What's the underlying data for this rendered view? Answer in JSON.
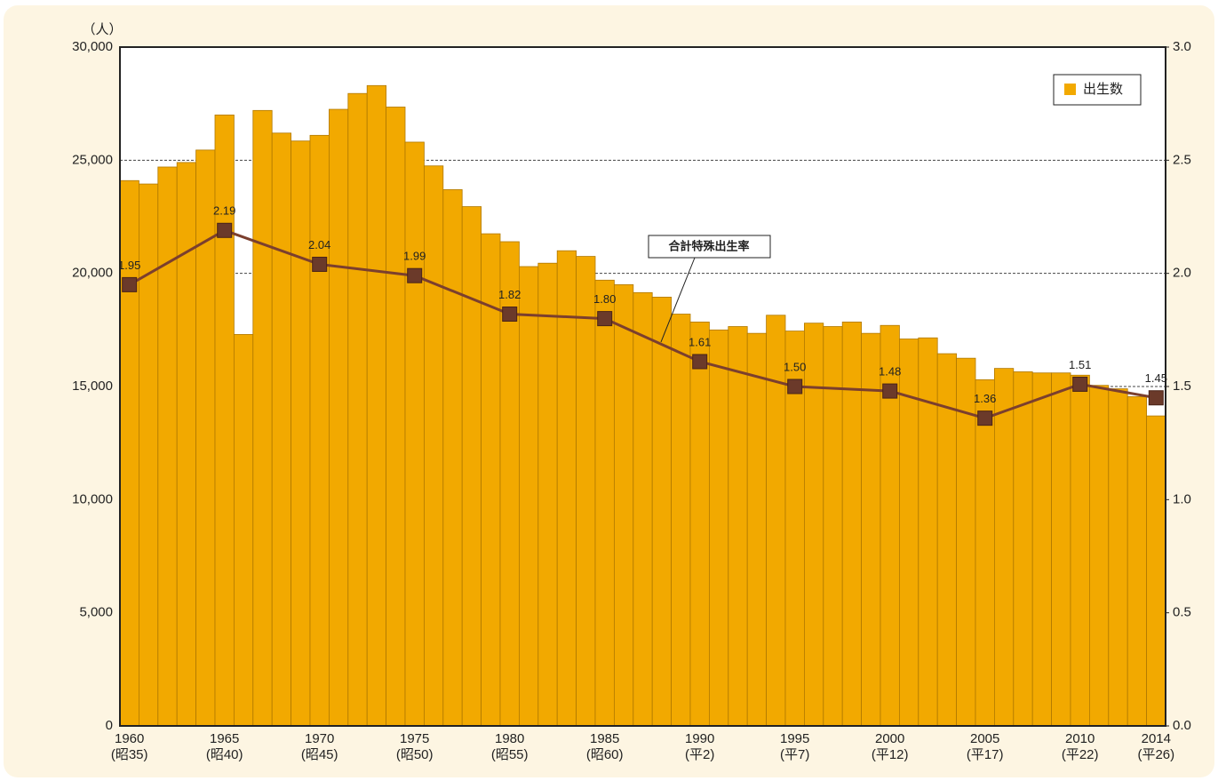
{
  "chart_data": {
    "type": "bar-line",
    "y_unit_label": "（人）",
    "categories": [
      "1960",
      null,
      null,
      null,
      null,
      "1965",
      null,
      null,
      null,
      null,
      "1970",
      null,
      null,
      null,
      null,
      "1975",
      null,
      null,
      null,
      null,
      "1980",
      null,
      null,
      null,
      null,
      "1985",
      null,
      null,
      null,
      null,
      "1990",
      null,
      null,
      null,
      null,
      "1995",
      null,
      null,
      null,
      null,
      "2000",
      null,
      null,
      null,
      null,
      "2005",
      null,
      null,
      null,
      null,
      "2010",
      null,
      null,
      null,
      "2014"
    ],
    "category_eras": [
      "(昭35)",
      null,
      null,
      null,
      null,
      "(昭40)",
      null,
      null,
      null,
      null,
      "(昭45)",
      null,
      null,
      null,
      null,
      "(昭50)",
      null,
      null,
      null,
      null,
      "(昭55)",
      null,
      null,
      null,
      null,
      "(昭60)",
      null,
      null,
      null,
      null,
      "(平2)",
      null,
      null,
      null,
      null,
      "(平7)",
      null,
      null,
      null,
      null,
      "(平12)",
      null,
      null,
      null,
      null,
      "(平17)",
      null,
      null,
      null,
      null,
      "(平22)",
      null,
      null,
      null,
      "(平26)"
    ],
    "xlim": [
      1960,
      2014
    ],
    "series": [
      {
        "name": "出生数",
        "type": "bar",
        "color": "#f2a900",
        "values": [
          24100,
          23950,
          24700,
          24900,
          25450,
          27000,
          17300,
          27200,
          26200,
          25850,
          26100,
          27250,
          27950,
          28300,
          27350,
          25800,
          24750,
          23700,
          22950,
          21750,
          21400,
          20300,
          20450,
          21000,
          20750,
          19700,
          19500,
          19150,
          18950,
          18200,
          17850,
          17500,
          17650,
          17350,
          18150,
          17450,
          17800,
          17650,
          17850,
          17350,
          17700,
          17100,
          17150,
          16450,
          16250,
          15300,
          15800,
          15650,
          15600,
          15600,
          15500,
          15050,
          14900,
          14550,
          13700
        ]
      },
      {
        "name": "合計特殊出生率",
        "type": "line",
        "axis": "y2",
        "color": "#7b3f2e",
        "x": [
          1960,
          1965,
          1970,
          1975,
          1980,
          1985,
          1990,
          1995,
          2000,
          2005,
          2010,
          2014
        ],
        "values": [
          1.95,
          2.19,
          2.04,
          1.99,
          1.82,
          1.8,
          1.61,
          1.5,
          1.48,
          1.36,
          1.51,
          1.45
        ],
        "value_labels": [
          "1.95",
          "2.19",
          "2.04",
          "1.99",
          "1.82",
          "1.80",
          "1.61",
          "1.50",
          "1.48",
          "1.36",
          "1.51",
          "1.45"
        ]
      }
    ],
    "ylim": [
      0,
      30000
    ],
    "yticks": [
      0,
      {
        "value": 5000,
        "label": "5,000"
      },
      {
        "value": 10000,
        "label": "10,000"
      },
      {
        "value": 15000,
        "label": "15,000"
      },
      {
        "value": 20000,
        "label": "20,000"
      },
      {
        "value": 25000,
        "label": "25,000"
      },
      {
        "value": 30000,
        "label": "30,000"
      }
    ],
    "y2lim": [
      0,
      3
    ],
    "y2ticks": [
      {
        "value": 0,
        "label": "0.0"
      },
      {
        "value": 0.5,
        "label": "0.5"
      },
      {
        "value": 1,
        "label": "1.0"
      },
      {
        "value": 1.5,
        "label": "1.5"
      },
      {
        "value": 2,
        "label": "2.0"
      },
      {
        "value": 2.5,
        "label": "2.5"
      },
      {
        "value": 3,
        "label": "3.0"
      }
    ],
    "grid": true,
    "legend": "top-right"
  }
}
